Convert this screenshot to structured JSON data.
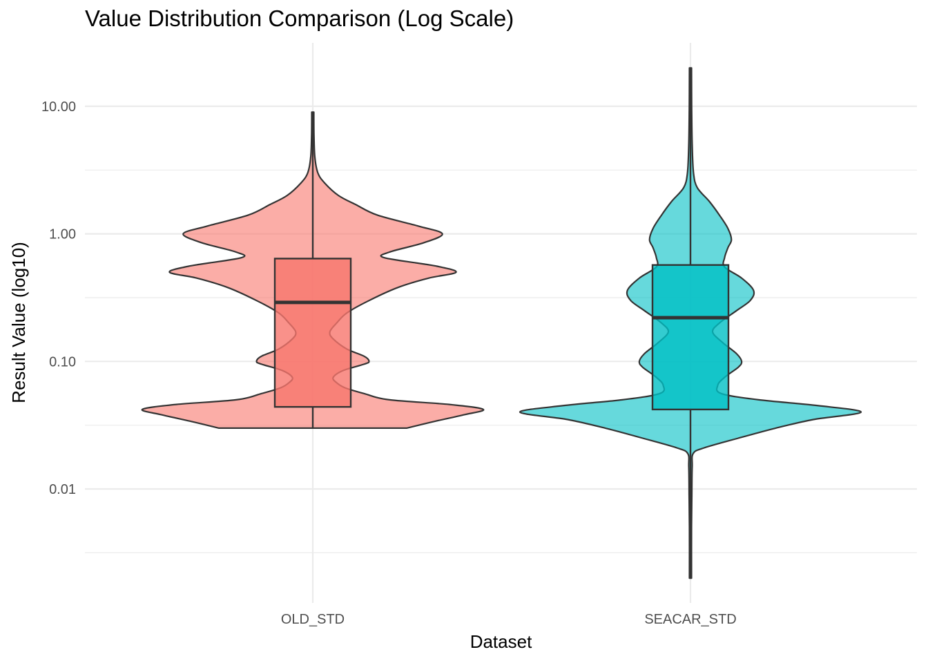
{
  "chart_data": {
    "type": "violin",
    "title": "Value Distribution Comparison (Log Scale)",
    "xlabel": "Dataset",
    "ylabel": "Result Value (log10)",
    "y_scale": "log10",
    "ylim": [
      0.0015,
      25
    ],
    "y_ticks": [
      0.01,
      0.1,
      1.0,
      10.0
    ],
    "y_tick_labels": [
      "0.01",
      "0.10",
      "1.00",
      "10.00"
    ],
    "y_minor_gridlines": [
      0.00316,
      0.0316,
      0.316,
      3.16
    ],
    "grid": true,
    "legend": "none",
    "categories": [
      "OLD_STD",
      "SEACAR_STD"
    ],
    "series": [
      {
        "category": "OLD_STD",
        "color": "#F8766D",
        "violin_min": 0.03,
        "violin_max": 9.0,
        "box": {
          "q1": 0.044,
          "median": 0.29,
          "q3": 0.64,
          "whisker_low": 0.03,
          "whisker_high": 9.0
        },
        "density_profile": [
          [
            0.03,
            0.55
          ],
          [
            0.034,
            0.72
          ],
          [
            0.038,
            0.88
          ],
          [
            0.042,
            1.0
          ],
          [
            0.046,
            0.8
          ],
          [
            0.05,
            0.45
          ],
          [
            0.056,
            0.3
          ],
          [
            0.062,
            0.19
          ],
          [
            0.068,
            0.14
          ],
          [
            0.075,
            0.12
          ],
          [
            0.085,
            0.18
          ],
          [
            0.095,
            0.3
          ],
          [
            0.1,
            0.33
          ],
          [
            0.11,
            0.3
          ],
          [
            0.125,
            0.2
          ],
          [
            0.15,
            0.12
          ],
          [
            0.17,
            0.1
          ],
          [
            0.2,
            0.14
          ],
          [
            0.24,
            0.2
          ],
          [
            0.3,
            0.33
          ],
          [
            0.38,
            0.5
          ],
          [
            0.45,
            0.68
          ],
          [
            0.5,
            0.84
          ],
          [
            0.56,
            0.72
          ],
          [
            0.65,
            0.42
          ],
          [
            0.72,
            0.45
          ],
          [
            0.85,
            0.65
          ],
          [
            1.0,
            0.76
          ],
          [
            1.15,
            0.62
          ],
          [
            1.4,
            0.38
          ],
          [
            1.7,
            0.25
          ],
          [
            2.0,
            0.15
          ],
          [
            2.5,
            0.07
          ],
          [
            3.0,
            0.03
          ],
          [
            4.0,
            0.012
          ],
          [
            6.0,
            0.007
          ],
          [
            9.0,
            0.006
          ]
        ]
      },
      {
        "category": "SEACAR_STD",
        "color": "#00BFC4",
        "violin_min": 0.002,
        "violin_max": 20.0,
        "box": {
          "q1": 0.042,
          "median": 0.22,
          "q3": 0.57,
          "whisker_low": 0.002,
          "whisker_high": 20.0
        },
        "density_profile": [
          [
            0.002,
            0.006
          ],
          [
            0.005,
            0.006
          ],
          [
            0.009,
            0.008
          ],
          [
            0.015,
            0.01
          ],
          [
            0.019,
            0.016
          ],
          [
            0.021,
            0.08
          ],
          [
            0.025,
            0.28
          ],
          [
            0.03,
            0.5
          ],
          [
            0.035,
            0.72
          ],
          [
            0.04,
            1.0
          ],
          [
            0.045,
            0.75
          ],
          [
            0.05,
            0.4
          ],
          [
            0.056,
            0.18
          ],
          [
            0.065,
            0.16
          ],
          [
            0.075,
            0.2
          ],
          [
            0.09,
            0.28
          ],
          [
            0.1,
            0.3
          ],
          [
            0.115,
            0.27
          ],
          [
            0.14,
            0.19
          ],
          [
            0.17,
            0.13
          ],
          [
            0.2,
            0.17
          ],
          [
            0.25,
            0.27
          ],
          [
            0.3,
            0.35
          ],
          [
            0.36,
            0.37
          ],
          [
            0.45,
            0.3
          ],
          [
            0.55,
            0.2
          ],
          [
            0.65,
            0.2
          ],
          [
            0.78,
            0.22
          ],
          [
            0.9,
            0.24
          ],
          [
            1.1,
            0.22
          ],
          [
            1.4,
            0.17
          ],
          [
            1.8,
            0.11
          ],
          [
            2.3,
            0.04
          ],
          [
            3.0,
            0.018
          ],
          [
            5.0,
            0.01
          ],
          [
            10.0,
            0.007
          ],
          [
            20.0,
            0.006
          ]
        ]
      }
    ]
  }
}
